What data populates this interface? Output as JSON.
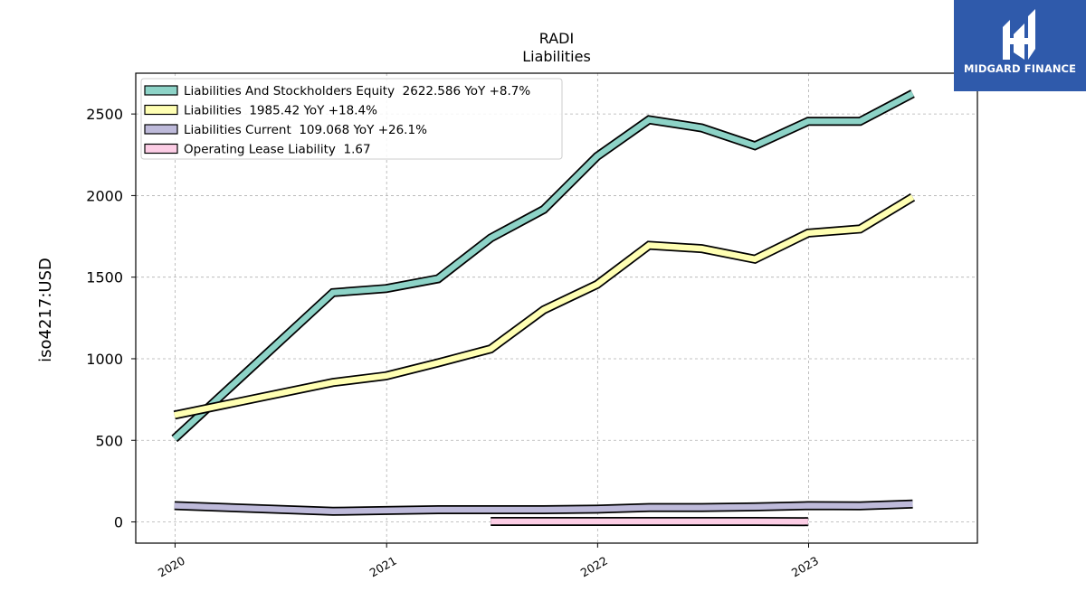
{
  "brand": {
    "name": "MIDGARD FINANCE",
    "icon": "midgard-logo-icon",
    "color": "#2f5aab"
  },
  "chart_data": {
    "type": "line",
    "title": "RADI",
    "subtitle": "Liabilities",
    "xlabel": "",
    "ylabel": "iso4217:USD",
    "x_ticks": [
      "2020",
      "2021",
      "2022",
      "2023"
    ],
    "y_ticks": [
      0,
      500,
      1000,
      1500,
      2000,
      2500
    ],
    "xlim": [
      "2019-10-25",
      "2023-10-20"
    ],
    "ylim": [
      -130,
      2750
    ],
    "grid": true,
    "legend_position": "upper-left",
    "series": [
      {
        "name": "Liabilities And Stockholders Equity",
        "legend": "Liabilities And Stockholders Equity  2622.586 YoY +8.7%",
        "color": "#8dd3c7",
        "x": [
          "2019-12-31",
          "2020-09-30",
          "2020-12-31",
          "2021-03-31",
          "2021-06-30",
          "2021-09-30",
          "2021-12-31",
          "2022-03-31",
          "2022-06-30",
          "2022-09-30",
          "2022-12-31",
          "2023-03-31",
          "2023-06-30"
        ],
        "values": [
          510,
          1405,
          1430,
          1490,
          1740,
          1915,
          2240,
          2465,
          2415,
          2305,
          2455,
          2455,
          2625
        ]
      },
      {
        "name": "Liabilities",
        "legend": "Liabilities  1985.42 YoY +18.4%",
        "color": "#ffffb3",
        "x": [
          "2019-12-31",
          "2020-09-30",
          "2020-12-31",
          "2021-03-31",
          "2021-06-30",
          "2021-09-30",
          "2021-12-31",
          "2022-03-31",
          "2022-06-30",
          "2022-09-30",
          "2022-12-31",
          "2023-03-31",
          "2023-06-30"
        ],
        "values": [
          655,
          855,
          895,
          975,
          1060,
          1300,
          1455,
          1695,
          1675,
          1610,
          1770,
          1795,
          1990
        ]
      },
      {
        "name": "Liabilities Current",
        "legend": "Liabilities Current  109.068 YoY +26.1%",
        "color": "#bebada",
        "x": [
          "2019-12-31",
          "2020-09-30",
          "2020-12-31",
          "2021-03-31",
          "2021-06-30",
          "2021-09-30",
          "2021-12-31",
          "2022-03-31",
          "2022-06-30",
          "2022-09-30",
          "2022-12-31",
          "2023-03-31",
          "2023-06-30"
        ],
        "values": [
          100,
          65,
          70,
          75,
          75,
          75,
          78,
          88,
          88,
          92,
          100,
          98,
          109
        ]
      },
      {
        "name": "Operating Lease Liability",
        "legend": "Operating Lease Liability  1.67",
        "color": "#fccde5",
        "x": [
          "2021-06-30",
          "2021-09-30",
          "2021-12-31",
          "2022-03-31",
          "2022-06-30",
          "2022-09-30",
          "2022-12-31"
        ],
        "values": [
          3,
          3,
          3,
          3,
          3,
          3,
          2
        ]
      }
    ]
  }
}
